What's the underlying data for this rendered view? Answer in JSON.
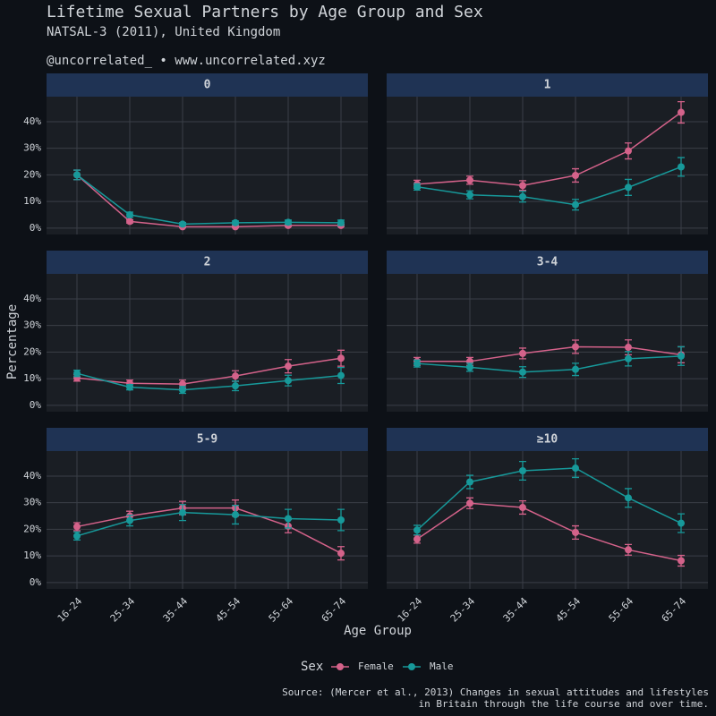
{
  "title": "Lifetime Sexual Partners by Age Group and Sex",
  "subtitle": "NATSAL-3 (2011), United Kingdom",
  "handle": "@uncorrelated_ • www.uncorrelated.xyz",
  "x_label": "Age Group",
  "y_label": "Percentage",
  "legend_title": "Sex",
  "caption": [
    "Source: (Mercer et al., 2013) Changes in sexual attitudes and lifestyles",
    "in Britain through the life course and over time."
  ],
  "chart_data": [
    {
      "type": "line",
      "title": "0",
      "categories": [
        "16-24",
        "25-34",
        "35-44",
        "45-54",
        "55-64",
        "65-74"
      ],
      "ylim": [
        -2.4,
        49.4
      ],
      "yticks": [
        {
          "value": 0,
          "label": "0%"
        },
        {
          "value": 10,
          "label": "10%"
        },
        {
          "value": 20,
          "label": "20%"
        },
        {
          "value": 30,
          "label": "30%"
        },
        {
          "value": 40,
          "label": "40%"
        }
      ],
      "series": [
        {
          "name": "Female",
          "color": "#d4628a",
          "values": [
            20,
            2.5,
            0.5,
            0.5,
            1,
            1
          ],
          "errors": [
            1.8,
            0.6,
            0.3,
            0.3,
            0.4,
            0.4
          ]
        },
        {
          "name": "Male",
          "color": "#17999a",
          "values": [
            20,
            5,
            1.5,
            2,
            2.2,
            2
          ],
          "errors": [
            1.8,
            1,
            0.6,
            0.7,
            0.8,
            1
          ]
        }
      ]
    },
    {
      "type": "line",
      "title": "1",
      "categories": [
        "16-24",
        "25-34",
        "35-44",
        "45-54",
        "55-64",
        "65-74"
      ],
      "ylim": [
        -2.4,
        49.4
      ],
      "yticks": [
        {
          "value": 0,
          "label": "0%"
        },
        {
          "value": 10,
          "label": "10%"
        },
        {
          "value": 20,
          "label": "20%"
        },
        {
          "value": 30,
          "label": "30%"
        },
        {
          "value": 40,
          "label": "40%"
        }
      ],
      "series": [
        {
          "name": "Female",
          "color": "#d4628a",
          "values": [
            16.5,
            18,
            16,
            19.8,
            29,
            43.5
          ],
          "errors": [
            1.5,
            1.5,
            1.8,
            2.5,
            3,
            4
          ]
        },
        {
          "name": "Male",
          "color": "#17999a",
          "values": [
            15.5,
            12.5,
            11.8,
            8.8,
            15.3,
            23
          ],
          "errors": [
            1.2,
            1.5,
            2,
            2,
            3,
            3.5
          ]
        }
      ]
    },
    {
      "type": "line",
      "title": "2",
      "categories": [
        "16-24",
        "25-34",
        "35-44",
        "45-54",
        "55-64",
        "65-74"
      ],
      "ylim": [
        -2.4,
        49.4
      ],
      "yticks": [
        {
          "value": 0,
          "label": "0%"
        },
        {
          "value": 10,
          "label": "10%"
        },
        {
          "value": 20,
          "label": "20%"
        },
        {
          "value": 30,
          "label": "30%"
        },
        {
          "value": 40,
          "label": "40%"
        }
      ],
      "series": [
        {
          "name": "Female",
          "color": "#d4628a",
          "values": [
            10.3,
            8.3,
            8,
            11,
            14.7,
            17.7
          ],
          "errors": [
            1.2,
            1.2,
            1.5,
            2,
            2.5,
            3
          ]
        },
        {
          "name": "Male",
          "color": "#17999a",
          "values": [
            12,
            6.8,
            5.8,
            7.3,
            9.3,
            11.2
          ],
          "errors": [
            1.2,
            1,
            1.3,
            1.8,
            2,
            3
          ]
        }
      ]
    },
    {
      "type": "line",
      "title": "3-4",
      "categories": [
        "16-24",
        "25-34",
        "35-44",
        "45-54",
        "55-64",
        "65-74"
      ],
      "ylim": [
        -2.4,
        49.4
      ],
      "yticks": [
        {
          "value": 0,
          "label": "0%"
        },
        {
          "value": 10,
          "label": "10%"
        },
        {
          "value": 20,
          "label": "20%"
        },
        {
          "value": 30,
          "label": "30%"
        },
        {
          "value": 40,
          "label": "40%"
        }
      ],
      "series": [
        {
          "name": "Female",
          "color": "#d4628a",
          "values": [
            16.5,
            16.5,
            19.5,
            22,
            21.8,
            19
          ],
          "errors": [
            1.5,
            1.5,
            2,
            2.5,
            2.8,
            3
          ]
        },
        {
          "name": "Male",
          "color": "#17999a",
          "values": [
            15.7,
            14.3,
            12.5,
            13.5,
            17.5,
            18.5
          ],
          "errors": [
            1.3,
            1.5,
            2,
            2.3,
            2.7,
            3.5
          ]
        }
      ]
    },
    {
      "type": "line",
      "title": "5-9",
      "categories": [
        "16-24",
        "25-34",
        "35-44",
        "45-54",
        "55-64",
        "65-74"
      ],
      "ylim": [
        -2.4,
        49.4
      ],
      "yticks": [
        {
          "value": 0,
          "label": "0%"
        },
        {
          "value": 10,
          "label": "10%"
        },
        {
          "value": 20,
          "label": "20%"
        },
        {
          "value": 30,
          "label": "30%"
        },
        {
          "value": 40,
          "label": "40%"
        }
      ],
      "series": [
        {
          "name": "Female",
          "color": "#d4628a",
          "values": [
            21,
            25,
            28,
            28,
            21.2,
            11
          ],
          "errors": [
            1.5,
            1.8,
            2.5,
            3,
            2.5,
            2.5
          ]
        },
        {
          "name": "Male",
          "color": "#17999a",
          "values": [
            17.5,
            23.3,
            26.3,
            25.5,
            24,
            23.5
          ],
          "errors": [
            1.5,
            2,
            3,
            3.5,
            3.5,
            4
          ]
        }
      ]
    },
    {
      "type": "line",
      "title": "≥10",
      "categories": [
        "16-24",
        "25-34",
        "35-44",
        "45-54",
        "55-64",
        "65-74"
      ],
      "ylim": [
        -2.4,
        49.4
      ],
      "yticks": [
        {
          "value": 0,
          "label": "0%"
        },
        {
          "value": 10,
          "label": "10%"
        },
        {
          "value": 20,
          "label": "20%"
        },
        {
          "value": 30,
          "label": "30%"
        },
        {
          "value": 40,
          "label": "40%"
        }
      ],
      "series": [
        {
          "name": "Female",
          "color": "#d4628a",
          "values": [
            16.3,
            29.8,
            28.2,
            18.8,
            12.3,
            8.2
          ],
          "errors": [
            1.5,
            2,
            2.5,
            2.5,
            2,
            2
          ]
        },
        {
          "name": "Male",
          "color": "#17999a",
          "values": [
            19.7,
            37.8,
            42,
            43,
            31.8,
            22.3
          ],
          "errors": [
            1.8,
            2.5,
            3.5,
            3.5,
            3.5,
            3.5
          ]
        }
      ]
    }
  ]
}
